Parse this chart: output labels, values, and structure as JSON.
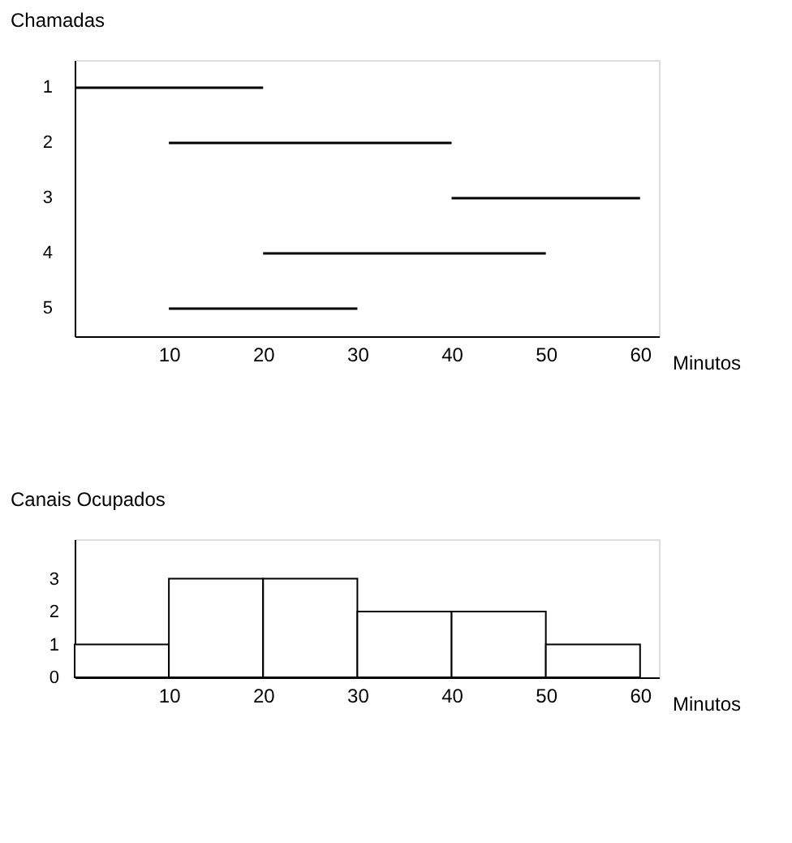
{
  "chart_data": [
    {
      "type": "bar",
      "orientation": "horizontal",
      "ylabel": "Chamadas",
      "xlabel": "Minutos",
      "categories": [
        "1",
        "2",
        "3",
        "4",
        "5"
      ],
      "base": [
        0,
        10,
        40,
        20,
        10
      ],
      "values": [
        20,
        30,
        20,
        30,
        20
      ],
      "color": "#000000",
      "xlim": [
        0,
        62
      ],
      "xticks": [
        10,
        20,
        30,
        40,
        50,
        60
      ],
      "grid": false
    },
    {
      "type": "histogram",
      "ylabel": "Canais  Ocupados",
      "xlabel": "Minutos",
      "bins": [
        0,
        10,
        20,
        30,
        40,
        50,
        60
      ],
      "values": [
        1,
        3,
        3,
        2,
        2,
        1
      ],
      "color": "#000000",
      "xlim": [
        0,
        62
      ],
      "xticks": [
        10,
        20,
        30,
        40,
        50,
        60
      ],
      "ylim": [
        0,
        4.2
      ],
      "yticks": [
        0,
        1,
        2,
        3
      ],
      "grid": false
    }
  ]
}
